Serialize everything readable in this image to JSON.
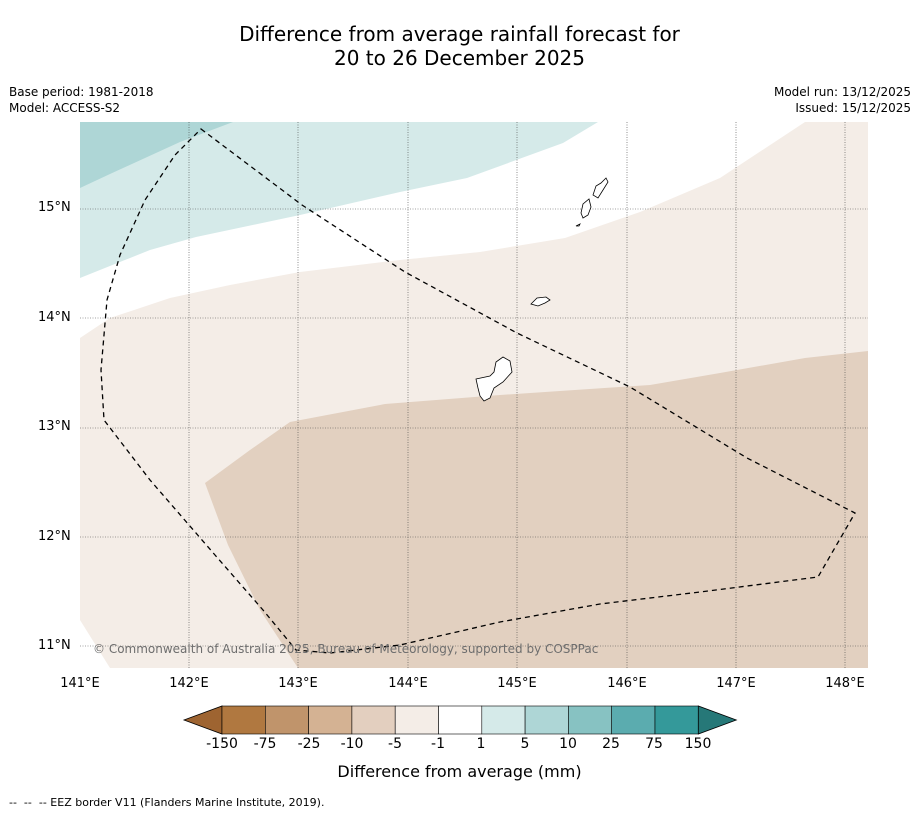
{
  "title": {
    "line1": "Difference from average rainfall forecast for",
    "line2": "20 to 26 December 2025"
  },
  "meta": {
    "base_period": "Base period: 1981-2018",
    "model": "Model: ACCESS-S2",
    "model_run": "Model run: 13/12/2025",
    "issued": "Issued: 15/12/2025"
  },
  "map": {
    "lat_labels": [
      "15°N",
      "14°N",
      "13°N",
      "12°N",
      "11°N"
    ],
    "lon_labels": [
      "141°E",
      "142°E",
      "143°E",
      "144°E",
      "145°E",
      "146°E",
      "147°E",
      "148°E"
    ],
    "copyright": "© Commonwealth of Australia 2025, Bureau of Meteorology, supported by COSPPac",
    "colors": {
      "light_brown": "#f4ede7",
      "mid_brown": "#e2d0c0",
      "light_teal": "#d5eae9",
      "mid_teal": "#aed6d6",
      "coast": "#000000",
      "eez": "#000000"
    }
  },
  "colorbar": {
    "tick_labels": [
      "-150",
      "-75",
      "-25",
      "-10",
      "-5",
      "-1",
      "1",
      "5",
      "10",
      "25",
      "75",
      "150"
    ],
    "colors": [
      "#9e6431",
      "#b07840",
      "#c0946b",
      "#d4b293",
      "#e3cfbf",
      "#f4ede7",
      "#ffffff",
      "#d5eae9",
      "#aed6d6",
      "#87c2c2",
      "#5bacaf",
      "#34999a",
      "#267878"
    ],
    "label": "Difference from average (mm)"
  },
  "footer": "--  --  -- EEZ border V11 (Flanders Marine Institute, 2019)."
}
